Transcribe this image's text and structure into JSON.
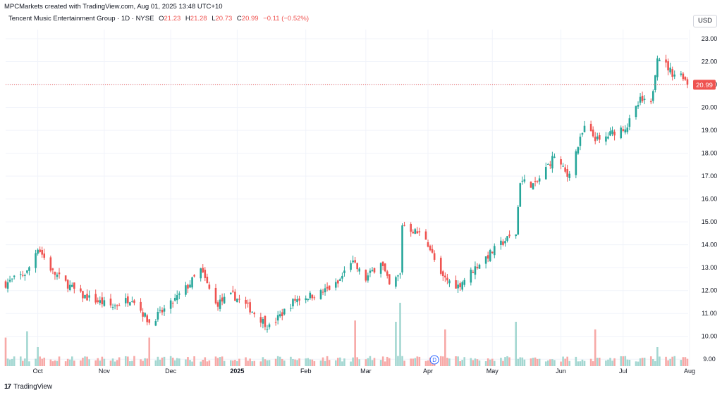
{
  "header": {
    "attribution": "MPCMarkets created with TradingView.com, Aug 01, 2025 13:48 UTC+10",
    "symbol": "Tencent Music Entertainment Group · 1D · NYSE",
    "o_label": "O",
    "o_value": "21.23",
    "h_label": "H",
    "h_value": "21.28",
    "l_label": "L",
    "l_value": "20.73",
    "c_label": "C",
    "c_value": "20.99",
    "change": "−0.11 (−0.52%)",
    "currency": "USD"
  },
  "footer": {
    "logo_mark": "17",
    "logo_text": "TradingView"
  },
  "colors": {
    "up": "#26a69a",
    "down": "#ef5350",
    "up_volume": "#a3d7d1",
    "down_volume": "#f7a9a7",
    "grid": "#f0f3fa"
  },
  "chart_data": {
    "type": "candlestick",
    "symbol": "Tencent Music Entertainment Group",
    "interval": "1D",
    "exchange": "NYSE",
    "currency": "USD",
    "ylim": [
      8.7,
      23.4
    ],
    "y_ticks": [
      "23.00",
      "22.00",
      "21.00",
      "20.00",
      "19.00",
      "18.00",
      "17.00",
      "16.00",
      "15.00",
      "14.00",
      "13.00",
      "12.00",
      "11.00",
      "10.00",
      "9.00"
    ],
    "x_ticks": [
      {
        "label": "Oct",
        "date": "2024-10-01"
      },
      {
        "label": "Nov",
        "date": "2024-11-01"
      },
      {
        "label": "Dec",
        "date": "2024-12-02"
      },
      {
        "label": "2025",
        "date": "2025-01-02"
      },
      {
        "label": "Feb",
        "date": "2025-02-03"
      },
      {
        "label": "Mar",
        "date": "2025-03-03"
      },
      {
        "label": "Apr",
        "date": "2025-04-01"
      },
      {
        "label": "May",
        "date": "2025-05-01"
      },
      {
        "label": "Jun",
        "date": "2025-06-02"
      },
      {
        "label": "Jul",
        "date": "2025-07-01"
      },
      {
        "label": "Aug",
        "date": "2025-08-01"
      }
    ],
    "last_price": "20.99",
    "dividend_marker": {
      "label": "D",
      "date": "2025-04-04"
    },
    "series": [
      {
        "name": "price",
        "waypoints": [
          {
            "date": "2024-09-16",
            "close": 12.3
          },
          {
            "date": "2024-09-26",
            "close": 12.8
          },
          {
            "date": "2024-10-01",
            "close": 13.9
          },
          {
            "date": "2024-10-08",
            "close": 12.8
          },
          {
            "date": "2024-10-21",
            "close": 11.8
          },
          {
            "date": "2024-11-05",
            "close": 11.3
          },
          {
            "date": "2024-11-14",
            "close": 11.7
          },
          {
            "date": "2024-11-22",
            "close": 10.6
          },
          {
            "date": "2024-12-02",
            "close": 11.4
          },
          {
            "date": "2024-12-10",
            "close": 12.2
          },
          {
            "date": "2024-12-16",
            "close": 12.9
          },
          {
            "date": "2024-12-23",
            "close": 11.4
          },
          {
            "date": "2024-12-31",
            "close": 11.8
          },
          {
            "date": "2025-01-08",
            "close": 11.2
          },
          {
            "date": "2025-01-17",
            "close": 10.4
          },
          {
            "date": "2025-01-29",
            "close": 11.6
          },
          {
            "date": "2025-02-10",
            "close": 11.9
          },
          {
            "date": "2025-02-18",
            "close": 12.3
          },
          {
            "date": "2025-02-24",
            "close": 13.3
          },
          {
            "date": "2025-03-03",
            "close": 12.5
          },
          {
            "date": "2025-03-10",
            "close": 13.3
          },
          {
            "date": "2025-03-14",
            "close": 12.2
          },
          {
            "date": "2025-03-19",
            "close": 12.7
          },
          {
            "date": "2025-03-20",
            "close": 14.9
          },
          {
            "date": "2025-03-31",
            "close": 14.3
          },
          {
            "date": "2025-04-07",
            "close": 12.6
          },
          {
            "date": "2025-04-15",
            "close": 12.2
          },
          {
            "date": "2025-04-25",
            "close": 13.2
          },
          {
            "date": "2025-05-07",
            "close": 14.2
          },
          {
            "date": "2025-05-12",
            "close": 14.5
          },
          {
            "date": "2025-05-14",
            "close": 16.8
          },
          {
            "date": "2025-05-21",
            "close": 16.6
          },
          {
            "date": "2025-05-30",
            "close": 17.9
          },
          {
            "date": "2025-06-05",
            "close": 17.0
          },
          {
            "date": "2025-06-13",
            "close": 19.1
          },
          {
            "date": "2025-06-20",
            "close": 18.5
          },
          {
            "date": "2025-06-26",
            "close": 18.9
          },
          {
            "date": "2025-07-03",
            "close": 19.2
          },
          {
            "date": "2025-07-09",
            "close": 20.3
          },
          {
            "date": "2025-07-14",
            "close": 20.1
          },
          {
            "date": "2025-07-17",
            "close": 22.3
          },
          {
            "date": "2025-07-24",
            "close": 21.5
          },
          {
            "date": "2025-07-29",
            "close": 21.4
          },
          {
            "date": "2025-07-31",
            "close": 20.99
          }
        ]
      },
      {
        "name": "volume",
        "relative_peaks": [
          {
            "date": "2024-09-16",
            "value": 0.45
          },
          {
            "date": "2024-09-26",
            "value": 0.55
          },
          {
            "date": "2024-10-01",
            "value": 0.3
          },
          {
            "date": "2024-11-22",
            "value": 0.45
          },
          {
            "date": "2025-02-26",
            "value": 0.72
          },
          {
            "date": "2025-03-17",
            "value": 0.7
          },
          {
            "date": "2025-03-19",
            "value": 1.0
          },
          {
            "date": "2025-04-09",
            "value": 0.58
          },
          {
            "date": "2025-05-12",
            "value": 0.7
          },
          {
            "date": "2025-06-18",
            "value": 0.58
          },
          {
            "date": "2025-07-17",
            "value": 0.3
          }
        ]
      }
    ]
  }
}
